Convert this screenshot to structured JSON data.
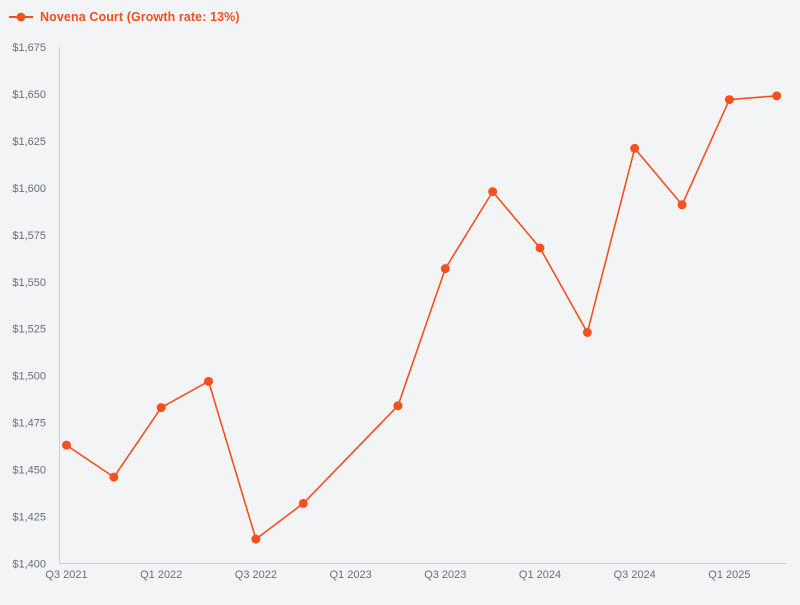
{
  "page": {
    "background_color": "#f3f4f6"
  },
  "legend": {
    "label": "Novena Court (Growth rate: 13%)",
    "marker": "line-dot",
    "color": "#f6501e"
  },
  "axes": {
    "axis_line_color": "#c8cfdb",
    "tick_label_color": "#666f7a",
    "tick_font_size": 11
  },
  "chart_data": {
    "type": "line",
    "title": "",
    "xlabel": "",
    "ylabel": "",
    "grid": false,
    "legend_position": "top-left",
    "ylim": [
      1400,
      1675
    ],
    "y_tick_step": 25,
    "y_tick_prefix": "$",
    "y_tick_labels": [
      "$1,400",
      "$1,425",
      "$1,450",
      "$1,475",
      "$1,500",
      "$1,525",
      "$1,550",
      "$1,575",
      "$1,600",
      "$1,625",
      "$1,650",
      "$1,675"
    ],
    "x_tick_labels": [
      "Q3 2021",
      "Q1 2022",
      "Q3 2022",
      "Q1 2023",
      "Q3 2023",
      "Q1 2024",
      "Q3 2024",
      "Q1 2025"
    ],
    "x_range": [
      "Q3 2021",
      "Q2 2025"
    ],
    "series": [
      {
        "name": "Novena Court",
        "growth_rate": "13%",
        "color": "#f6501e",
        "marker": "circle",
        "points": [
          {
            "quarter": "Q3 2021",
            "value": 1463
          },
          {
            "quarter": "Q4 2021",
            "value": 1446
          },
          {
            "quarter": "Q1 2022",
            "value": 1483
          },
          {
            "quarter": "Q2 2022",
            "value": 1497
          },
          {
            "quarter": "Q3 2022",
            "value": 1413
          },
          {
            "quarter": "Q4 2022",
            "value": 1432
          },
          {
            "quarter": "Q2 2023",
            "value": 1484
          },
          {
            "quarter": "Q3 2023",
            "value": 1557
          },
          {
            "quarter": "Q4 2023",
            "value": 1598
          },
          {
            "quarter": "Q1 2024",
            "value": 1568
          },
          {
            "quarter": "Q2 2024",
            "value": 1523
          },
          {
            "quarter": "Q3 2024",
            "value": 1621
          },
          {
            "quarter": "Q4 2024",
            "value": 1591
          },
          {
            "quarter": "Q1 2025",
            "value": 1647
          },
          {
            "quarter": "Q2 2025",
            "value": 1649
          }
        ]
      }
    ]
  }
}
